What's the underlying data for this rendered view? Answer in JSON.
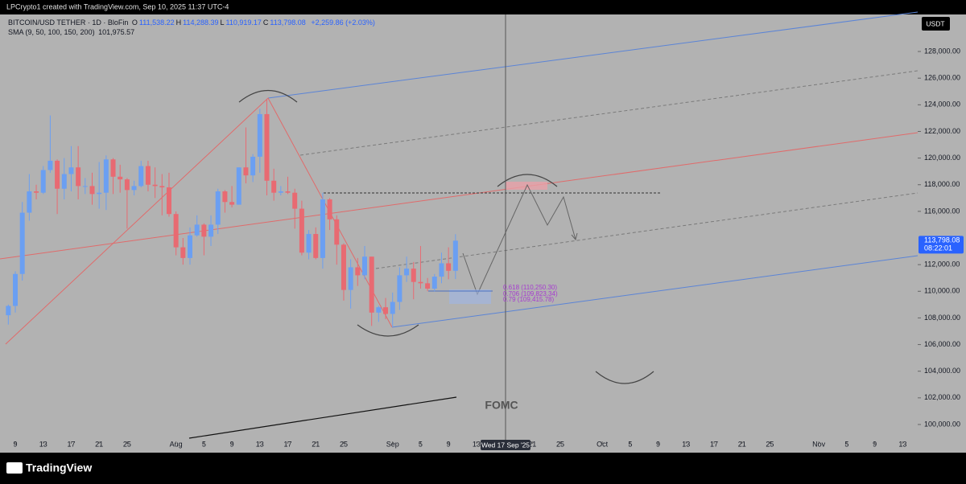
{
  "header": {
    "credit": "LPCrypto1 created with TradingView.com, Sep 10, 2025 11:37 UTC-4"
  },
  "legend": {
    "symbol": "BITCOIN/USD TETHER · 1D · BloFin",
    "ohlc": [
      {
        "key": "O",
        "value": "111,538.22"
      },
      {
        "key": "H",
        "value": "114,288.39"
      },
      {
        "key": "L",
        "value": "110,919.17"
      },
      {
        "key": "C",
        "value": "113,798.08"
      }
    ],
    "change": "+2,259.86 (+2.03%)",
    "indicator": "SMA (9, 50, 100, 150, 200)",
    "indicator_value": "101,975.57"
  },
  "currency_button": "USDT",
  "annotations": {
    "fib": [
      "0.618 (110,250.30)",
      "0.706 (109,823.34)",
      "0.79 (109,415.78)"
    ],
    "event": "FOMC",
    "crosshair_date": "Wed 17 Sep '25"
  },
  "footer": {
    "brand": "TradingView"
  },
  "chart_data": {
    "type": "candlestick",
    "up_color": "#6b9ff2",
    "down_color": "#e86a72",
    "xlim": [
      -2.19,
      129.15
    ],
    "ylim": [
      98550,
      130780
    ],
    "xticks": [
      {
        "value": 0,
        "label": "9"
      },
      {
        "value": 4,
        "label": "13"
      },
      {
        "value": 8,
        "label": "17"
      },
      {
        "value": 12,
        "label": "21"
      },
      {
        "value": 16,
        "label": "25"
      },
      {
        "value": 23,
        "label": "Aug"
      },
      {
        "value": 27,
        "label": "5"
      },
      {
        "value": 31,
        "label": "9"
      },
      {
        "value": 35,
        "label": "13"
      },
      {
        "value": 39,
        "label": "17"
      },
      {
        "value": 43,
        "label": "21"
      },
      {
        "value": 47,
        "label": "25"
      },
      {
        "value": 54,
        "label": "Sep"
      },
      {
        "value": 58,
        "label": "5"
      },
      {
        "value": 62,
        "label": "9"
      },
      {
        "value": 66,
        "label": "13"
      },
      {
        "value": 74,
        "label": "21"
      },
      {
        "value": 78,
        "label": "25"
      },
      {
        "value": 84,
        "label": "Oct"
      },
      {
        "value": 88,
        "label": "5"
      },
      {
        "value": 92,
        "label": "9"
      },
      {
        "value": 96,
        "label": "13"
      },
      {
        "value": 100,
        "label": "17"
      },
      {
        "value": 104,
        "label": "21"
      },
      {
        "value": 108,
        "label": "25"
      },
      {
        "value": 115,
        "label": "Nov"
      },
      {
        "value": 119,
        "label": "5"
      },
      {
        "value": 123,
        "label": "9"
      },
      {
        "value": 127,
        "label": "13"
      }
    ],
    "yticks": [
      {
        "value": 100000,
        "label": "100,000.00"
      },
      {
        "value": 102000,
        "label": "102,000.00"
      },
      {
        "value": 104000,
        "label": "104,000.00"
      },
      {
        "value": 106000,
        "label": "106,000.00"
      },
      {
        "value": 108000,
        "label": "108,000.00"
      },
      {
        "value": 110000,
        "label": "110,000.00"
      },
      {
        "value": 112000,
        "label": "112,000.00"
      },
      {
        "value": 116000,
        "label": "116,000.00"
      },
      {
        "value": 118000,
        "label": "118,000.00"
      },
      {
        "value": 120000,
        "label": "120,000.00"
      },
      {
        "value": 122000,
        "label": "122,000.00"
      },
      {
        "value": 124000,
        "label": "124,000.00"
      },
      {
        "value": 126000,
        "label": "126,000.00"
      },
      {
        "value": 128000,
        "label": "128,000.00"
      }
    ],
    "last_price": {
      "value": 113798.08,
      "label": "113,798.08"
    },
    "countdown": "08:22:01",
    "x": [
      -1,
      0,
      1,
      2,
      3,
      4,
      5,
      6,
      7,
      8,
      9,
      10,
      11,
      12,
      13,
      14,
      15,
      16,
      17,
      18,
      19,
      20,
      21,
      22,
      23,
      24,
      25,
      26,
      27,
      28,
      29,
      30,
      31,
      32,
      33,
      34,
      35,
      36,
      37,
      38,
      39,
      40,
      41,
      42,
      43,
      44,
      45,
      46,
      47,
      48,
      49,
      50,
      51,
      52,
      53,
      54,
      55,
      56,
      57,
      58,
      59,
      60,
      61,
      62,
      63
    ],
    "open": [
      108200,
      108900,
      111300,
      115900,
      117500,
      117400,
      119100,
      119800,
      117700,
      118800,
      119300,
      117900,
      117900,
      117300,
      117400,
      119900,
      118600,
      118400,
      117600,
      117900,
      119400,
      118000,
      117900,
      117800,
      115800,
      113300,
      112500,
      114200,
      115000,
      114100,
      115000,
      117500,
      116700,
      116500,
      119300,
      118700,
      120100,
      123300,
      118300,
      117400,
      117500,
      117400,
      116200,
      112900,
      114300,
      112500,
      116900,
      115400,
      113500,
      110100,
      111800,
      111200,
      112600,
      108400,
      108800,
      108300,
      109200,
      111200,
      111700,
      110700,
      110600,
      110200,
      111100,
      112100,
      111538.22
    ],
    "high": [
      109000,
      111500,
      116700,
      118800,
      118000,
      119400,
      123200,
      119900,
      120000,
      120900,
      120900,
      118500,
      118900,
      119700,
      120200,
      120000,
      119500,
      118500,
      118300,
      119800,
      119800,
      119300,
      118800,
      118900,
      116000,
      114000,
      114800,
      115700,
      115100,
      115700,
      117700,
      117600,
      117900,
      119300,
      122300,
      120300,
      123700,
      124400,
      119200,
      117900,
      118600,
      117700,
      116800,
      114600,
      114800,
      117400,
      117000,
      115700,
      113600,
      112400,
      112500,
      113400,
      112600,
      108900,
      109500,
      109900,
      111800,
      112600,
      112200,
      113400,
      111000,
      111300,
      112900,
      113300,
      114288.39
    ],
    "low": [
      107500,
      108400,
      110800,
      115300,
      116900,
      117300,
      118900,
      115800,
      116900,
      117500,
      116900,
      117300,
      116500,
      116200,
      116100,
      117300,
      117400,
      114700,
      117200,
      117800,
      117500,
      117000,
      115700,
      115600,
      112700,
      112000,
      112000,
      114100,
      112700,
      113400,
      114300,
      115900,
      116300,
      116500,
      118100,
      118200,
      118900,
      117200,
      116800,
      117200,
      117300,
      114700,
      112700,
      112400,
      112400,
      111700,
      114600,
      112000,
      109300,
      108700,
      110400,
      110900,
      107400,
      107700,
      107900,
      107300,
      108600,
      110700,
      109400,
      110200,
      110000,
      110000,
      110600,
      110900,
      110919.17
    ],
    "close": [
      108900,
      111300,
      115900,
      117500,
      117400,
      119100,
      119800,
      117700,
      118800,
      119300,
      117900,
      117900,
      117300,
      117400,
      119900,
      118600,
      118400,
      117600,
      117900,
      119400,
      118000,
      117900,
      117800,
      115800,
      113300,
      112500,
      114200,
      115000,
      114100,
      115000,
      117500,
      116700,
      116500,
      119300,
      118700,
      120100,
      123300,
      118300,
      117400,
      117500,
      117400,
      116200,
      112900,
      114300,
      112500,
      116900,
      115400,
      113500,
      110100,
      111800,
      111200,
      112600,
      108400,
      108800,
      108300,
      109200,
      111200,
      111700,
      110700,
      110600,
      110200,
      111100,
      112100,
      111538.22,
      113798.08
    ]
  }
}
